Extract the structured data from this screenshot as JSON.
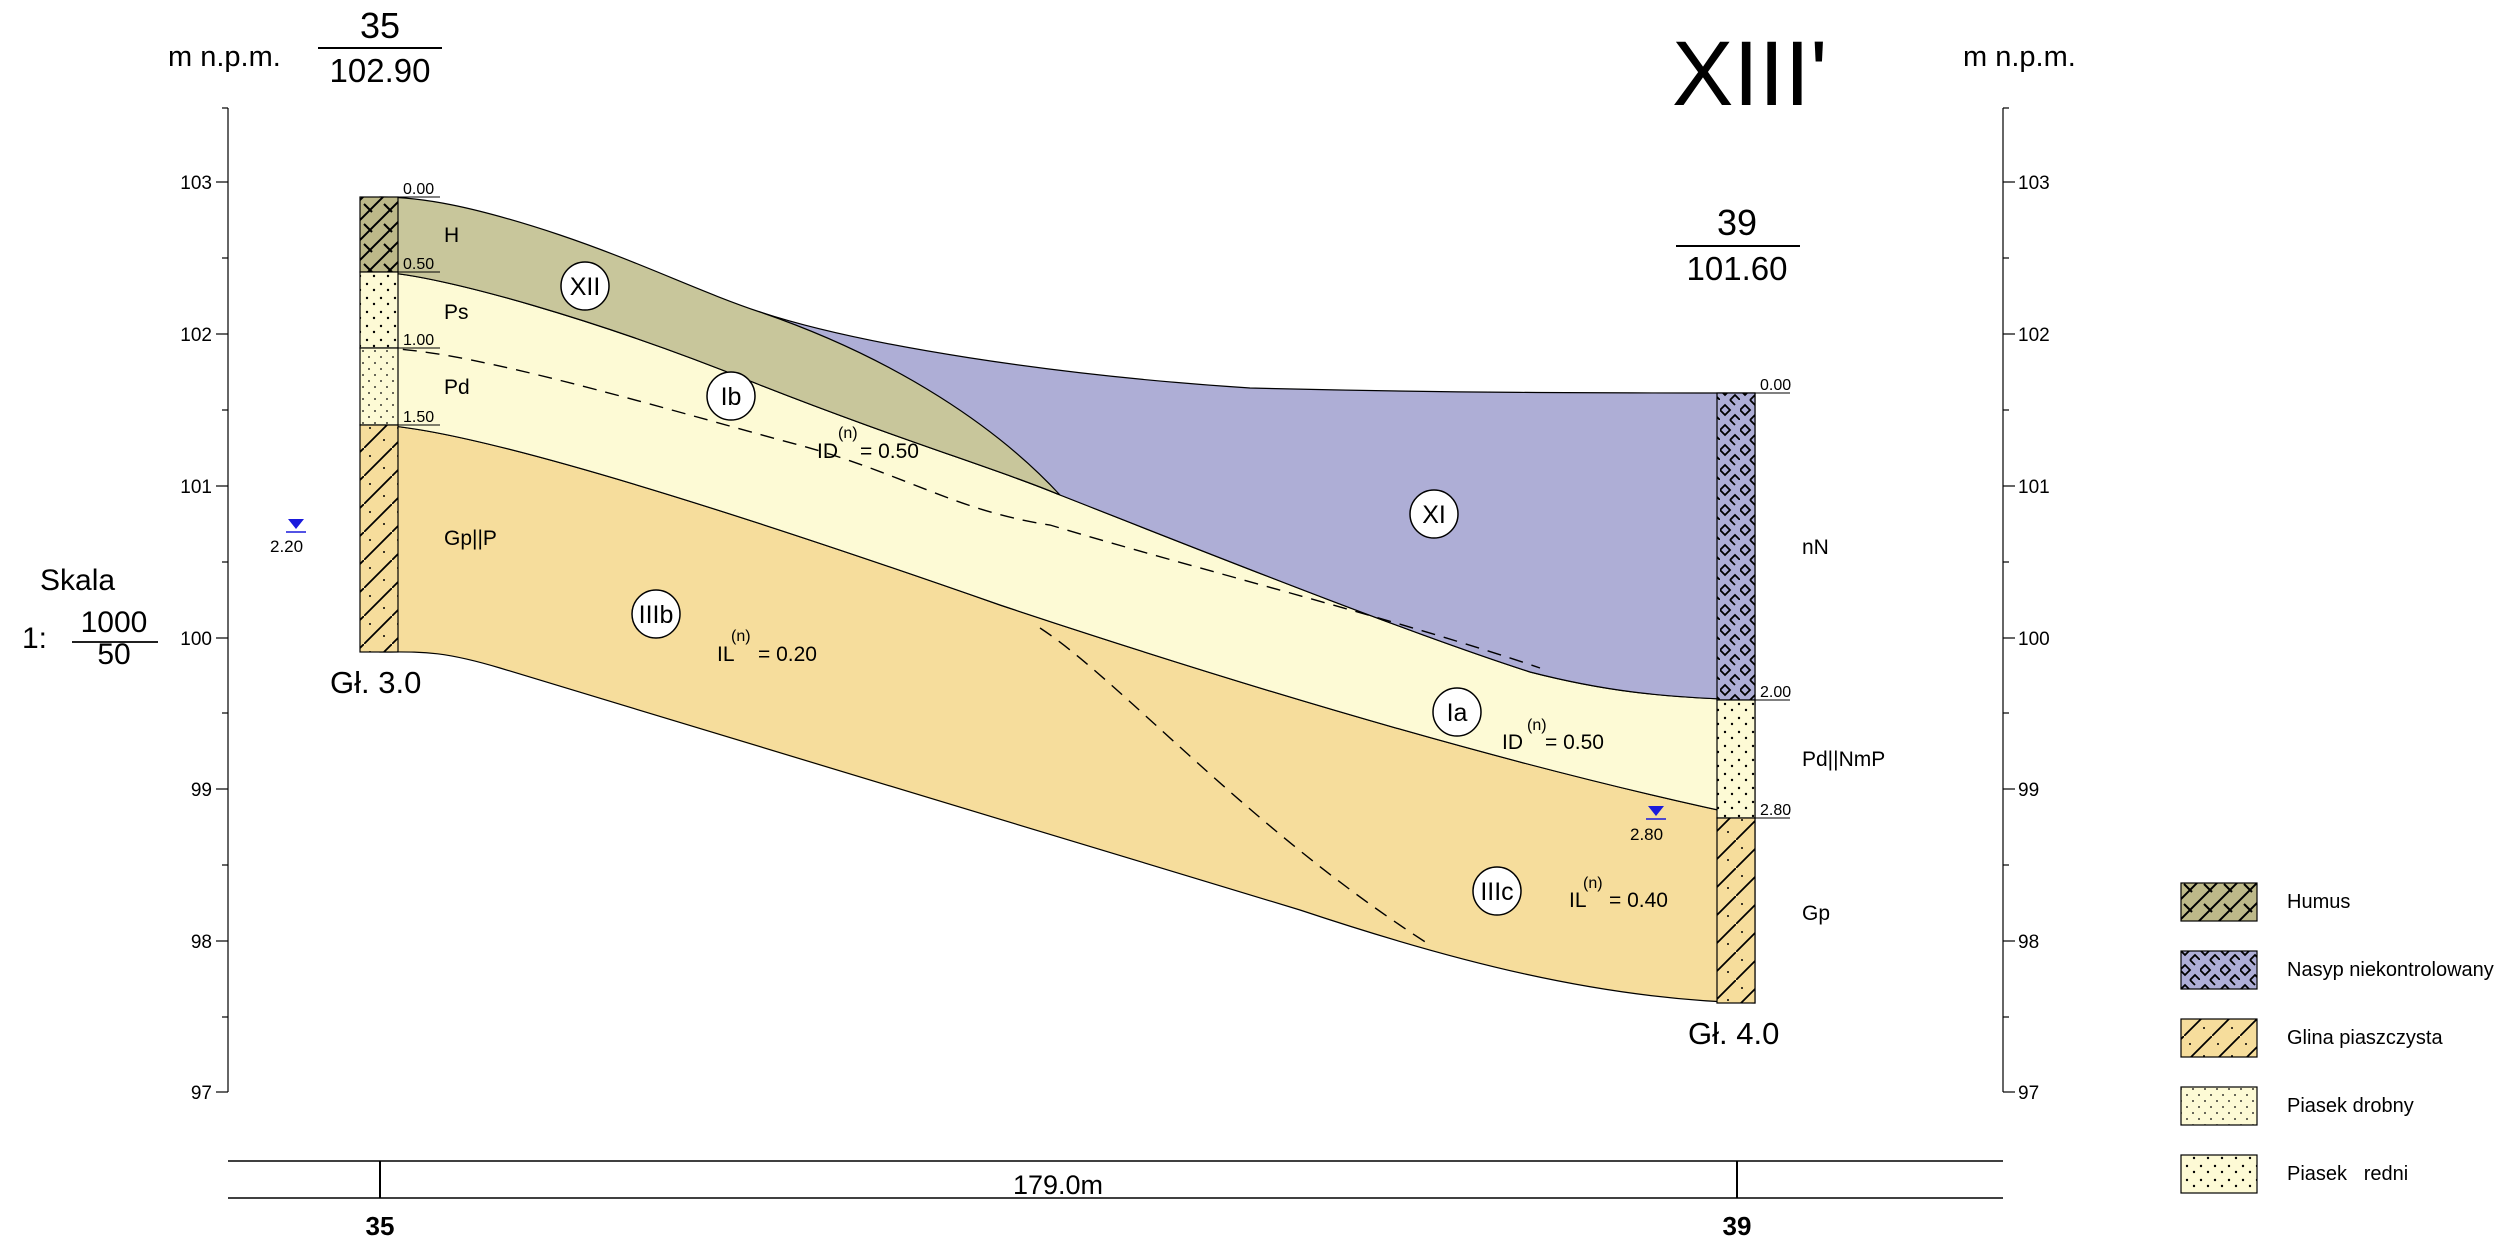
{
  "section": {
    "title": "XIII'",
    "unit_left": "m n.p.m.",
    "unit_right": "m n.p.m."
  },
  "scale": {
    "label": "Skala",
    "prefix": "1:",
    "horizontal": "1000",
    "vertical": "50"
  },
  "axis": {
    "ticks": [
      "103",
      "102",
      "101",
      "100",
      "99",
      "98",
      "97"
    ]
  },
  "boreholes": [
    {
      "number": "35",
      "elevation": "102.90",
      "depth_label": "Gł. 3.0",
      "water_table": "2.20",
      "depths": [
        "0.00",
        "0.50",
        "1.00",
        "1.50"
      ],
      "layers": [
        "H",
        "Ps",
        "Pd",
        "Gp||P"
      ]
    },
    {
      "number": "39",
      "elevation": "101.60",
      "depth_label": "Gł. 4.0",
      "water_table": "2.80",
      "depths": [
        "0.00",
        "2.00",
        "2.80"
      ],
      "layers": [
        "nN",
        "Pd||NmP",
        "Gp"
      ]
    }
  ],
  "zones": [
    {
      "id": "XII"
    },
    {
      "id": "Ib"
    },
    {
      "id": "XI"
    },
    {
      "id": "IIIb"
    },
    {
      "id": "Ia"
    },
    {
      "id": "IIIc"
    }
  ],
  "parameters": [
    {
      "name": "ID",
      "sup": "(n)",
      "value": "= 0.50"
    },
    {
      "name": "IL",
      "sup": "(n)",
      "value": "= 0.20"
    },
    {
      "name": "ID",
      "sup": "(n)",
      "value": "= 0.50"
    },
    {
      "name": "IL",
      "sup": "(n)",
      "value": "= 0.40"
    }
  ],
  "distance": {
    "value": "179.0m",
    "start_label": "35",
    "end_label": "39"
  },
  "legend": [
    {
      "label": "Humus",
      "color": "#bdb989",
      "pattern": "humus"
    },
    {
      "label": "Nasyp niekontrolowany",
      "color": "#aeaed6",
      "pattern": "nasyp"
    },
    {
      "label": "Glina piaszczysta",
      "color": "#f6dd9c",
      "pattern": "glina"
    },
    {
      "label": "Piasek drobny",
      "color": "#fdfad5",
      "pattern": "piasek_drobny"
    },
    {
      "label": "Piasek   redni",
      "color": "#fdfad5",
      "pattern": "piasek_sredni"
    }
  ],
  "colors": {
    "humus": "#bdb989",
    "nasyp": "#aeaed6",
    "glina": "#f6dd9c",
    "piasek": "#fdfad5",
    "water": "#1a1adc"
  }
}
